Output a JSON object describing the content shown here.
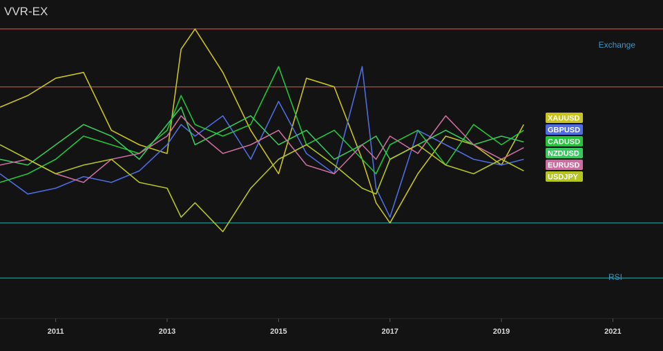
{
  "chart_data": {
    "type": "line",
    "title": "VVR-EX",
    "pane_labels": {
      "upper": "Exchange",
      "lower": "RSI"
    },
    "x_range": [
      2010.0,
      2021.9
    ],
    "y_range": [
      -5,
      105
    ],
    "x_ticks": [
      {
        "value": 2011,
        "label": "2011"
      },
      {
        "value": 2013,
        "label": "2013"
      },
      {
        "value": 2015,
        "label": "2015"
      },
      {
        "value": 2017,
        "label": "2017"
      },
      {
        "value": 2019,
        "label": "2019"
      },
      {
        "value": 2021,
        "label": "2021"
      }
    ],
    "reference_lines": [
      {
        "value": 95,
        "color": "#c8473a"
      },
      {
        "value": 75,
        "color": "#c8473a"
      },
      {
        "value": 28,
        "color": "#1f9e99"
      },
      {
        "value": 9,
        "color": "#1f9e99"
      }
    ],
    "x": [
      2010.0,
      2010.5,
      2011.0,
      2011.5,
      2012.0,
      2012.5,
      2013.0,
      2013.25,
      2013.5,
      2014.0,
      2014.5,
      2015.0,
      2015.5,
      2016.0,
      2016.5,
      2016.75,
      2017.0,
      2017.5,
      2018.0,
      2018.5,
      2019.0,
      2019.4
    ],
    "series": [
      {
        "name": "XAUUSD",
        "color": "#c9c31d",
        "values": [
          68,
          72,
          78,
          80,
          60,
          55,
          52,
          88,
          95,
          80,
          60,
          45,
          78,
          75,
          50,
          35,
          28,
          45,
          58,
          55,
          48,
          62
        ]
      },
      {
        "name": "GBPUSD",
        "color": "#4d6de0",
        "values": [
          45,
          38,
          40,
          44,
          42,
          46,
          55,
          62,
          58,
          65,
          50,
          70,
          52,
          45,
          82,
          40,
          30,
          60,
          55,
          50,
          48,
          50
        ]
      },
      {
        "name": "CADUSD",
        "color": "#22c43a",
        "values": [
          42,
          45,
          50,
          58,
          55,
          52,
          60,
          72,
          62,
          58,
          62,
          82,
          55,
          60,
          50,
          45,
          55,
          60,
          48,
          62,
          55,
          60
        ]
      },
      {
        "name": "NZDUSD",
        "color": "#37c95e",
        "values": [
          50,
          48,
          55,
          62,
          58,
          50,
          62,
          68,
          55,
          60,
          65,
          55,
          60,
          50,
          55,
          58,
          50,
          55,
          60,
          55,
          58,
          56
        ]
      },
      {
        "name": "EURUSD",
        "color": "#cc6d9e",
        "values": [
          48,
          50,
          45,
          42,
          50,
          52,
          58,
          65,
          60,
          52,
          55,
          60,
          48,
          45,
          55,
          50,
          58,
          52,
          65,
          55,
          50,
          54
        ]
      },
      {
        "name": "USDJPY",
        "color": "#b5c51f",
        "values": [
          55,
          50,
          45,
          48,
          50,
          42,
          40,
          30,
          35,
          25,
          40,
          50,
          55,
          48,
          40,
          38,
          50,
          55,
          48,
          45,
          50,
          46
        ]
      }
    ]
  }
}
